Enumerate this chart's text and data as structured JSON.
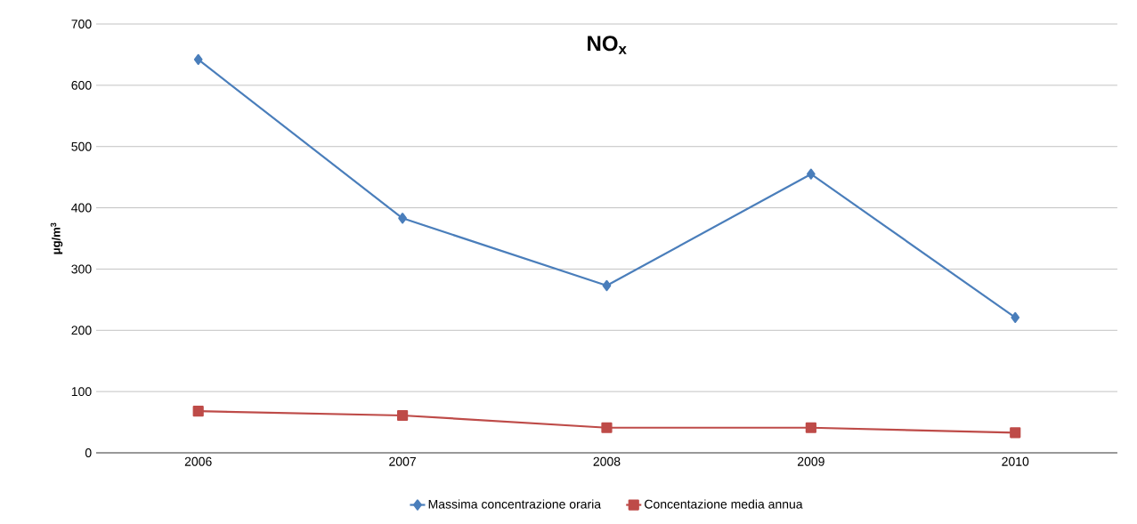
{
  "chart_data": {
    "type": "line",
    "title": "NO$_{x}$",
    "ylabel": "μg/m$^{3}$",
    "categories": [
      "2006",
      "2007",
      "2008",
      "2009",
      "2010"
    ],
    "series": [
      {
        "name": "Massima concentrazione oraria",
        "color": "#4a7ebb",
        "marker": "diamond",
        "values": [
          642,
          383,
          273,
          455,
          221
        ]
      },
      {
        "name": "Concentazione media annua",
        "color": "#be4b48",
        "marker": "square",
        "values": [
          68,
          61,
          41,
          41,
          33
        ]
      }
    ],
    "ylim": [
      0,
      700
    ],
    "yticks": [
      0,
      100,
      200,
      300,
      400,
      500,
      600,
      700
    ],
    "grid": "y",
    "legend": "bottom"
  }
}
